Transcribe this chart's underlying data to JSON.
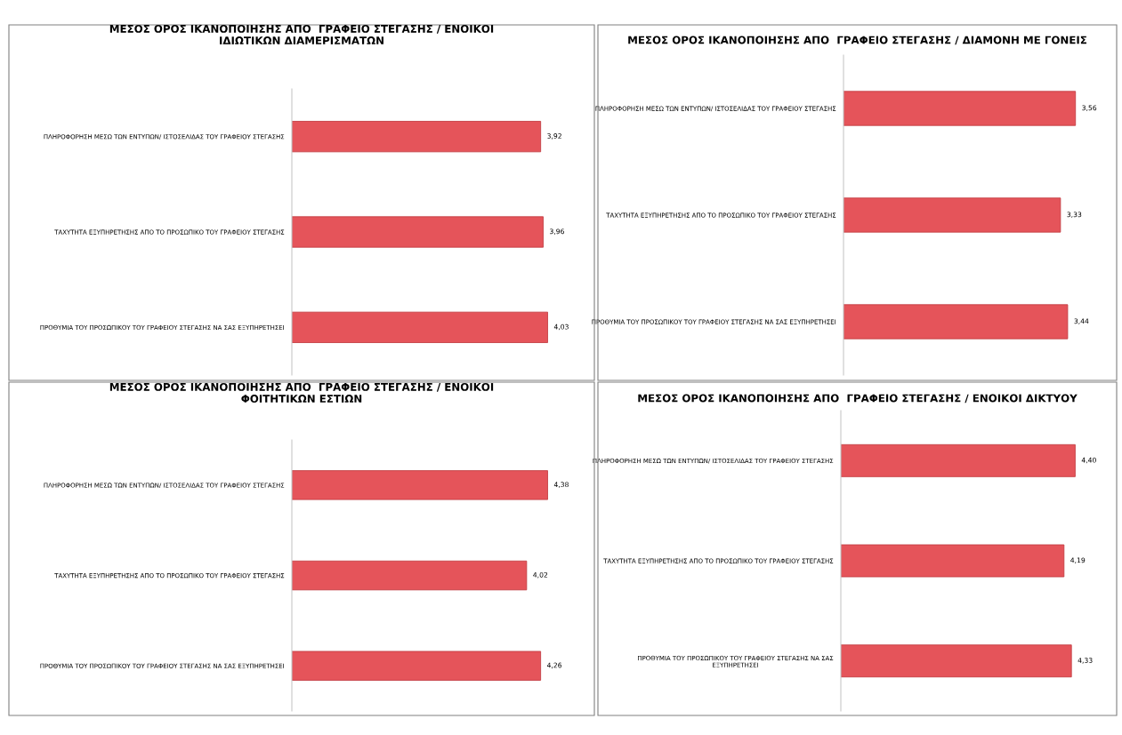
{
  "chart_data": [
    {
      "type": "bar",
      "orientation": "horizontal",
      "title": "ΜΕΣΟΣ ΟΡΟΣ ΙΚΑΝΟΠΟΙΗΣΗΣ ΑΠΟ  ΓΡΑΦΕΙΟ ΣΤΕΓΑΣΗΣ / ΕΝΟΙΚΟΙ\nΙΔΙΩΤΙΚΩΝ ΔΙΑΜΕΡΙΣΜΑΤΩΝ",
      "categories": [
        "ΠΛΗΡΟΦΟΡΗΣΗ ΜΕΣΩ ΤΩΝ ΕΝΤΥΠΩΝ/ ΙΣΤΟΣΕΛΙΔΑΣ ΤΟΥ ΓΡΑΦΕΙΟΥ ΣΤΕΓΑΣΗΣ",
        "ΤΑΧΥΤΗΤΑ ΕΞΥΠΗΡΕΤΗΣΗΣ ΑΠΟ ΤΟ ΠΡΟΣΩΠΙΚΟ ΤΟΥ ΓΡΑΦΕΙΟΥ ΣΤΕΓΑΣΗΣ",
        "ΠΡΟΘΥΜΙΑ ΤΟΥ ΠΡΟΣΩΠΙΚΟΥ ΤΟΥ ΓΡΑΦΕΙΟΥ ΣΤΕΓΑΣΗΣ ΝΑ ΣΑΣ ΕΞΥΠΗΡΕΤΗΣΕΙ"
      ],
      "values": [
        3.92,
        3.96,
        4.03
      ],
      "value_labels": [
        "3,92",
        "3,96",
        "4,03"
      ],
      "color": "#e5545a",
      "tick_labels": "y",
      "grid": false,
      "legend": false
    },
    {
      "type": "bar",
      "orientation": "horizontal",
      "title": "ΜΕΣΟΣ ΟΡΟΣ ΙΚΑΝΟΠΟΙΗΣΗΣ ΑΠΟ  ΓΡΑΦΕΙΟ ΣΤΕΓΑΣΗΣ / ΔΙΑΜΟΝΗ ΜΕ ΓΟΝΕΙΣ",
      "categories": [
        "ΠΛΗΡΟΦΟΡΗΣΗ ΜΕΣΩ ΤΩΝ ΕΝΤΥΠΩΝ/ ΙΣΤΟΣΕΛΙΔΑΣ ΤΟΥ ΓΡΑΦΕΙΟΥ ΣΤΕΓΑΣΗΣ",
        "ΤΑΧΥΤΗΤΑ ΕΞΥΠΗΡΕΤΗΣΗΣ ΑΠΟ ΤΟ ΠΡΟΣΩΠΙΚΟ ΤΟΥ ΓΡΑΦΕΙΟΥ ΣΤΕΓΑΣΗΣ",
        "ΠΡΟΘΥΜΙΑ ΤΟΥ ΠΡΟΣΩΠΙΚΟΥ ΤΟΥ ΓΡΑΦΕΙΟΥ ΣΤΕΓΑΣΗΣ ΝΑ ΣΑΣ ΕΞΥΠΗΡΕΤΗΣΕΙ"
      ],
      "values": [
        3.56,
        3.33,
        3.44
      ],
      "value_labels": [
        "3,56",
        "3,33",
        "3,44"
      ],
      "color": "#e5545a",
      "tick_labels": "y",
      "grid": false,
      "legend": false
    },
    {
      "type": "bar",
      "orientation": "horizontal",
      "title": "ΜΕΣΟΣ ΟΡΟΣ ΙΚΑΝΟΠΟΙΗΣΗΣ ΑΠΟ  ΓΡΑΦΕΙΟ ΣΤΕΓΑΣΗΣ / ΕΝΟΙΚΟΙ\nΦΟΙΤΗΤΙΚΩΝ ΕΣΤΙΩΝ",
      "categories": [
        "ΠΛΗΡΟΦΟΡΗΣΗ ΜΕΣΩ ΤΩΝ ΕΝΤΥΠΩΝ/ ΙΣΤΟΣΕΛΙΔΑΣ ΤΟΥ ΓΡΑΦΕΙΟΥ ΣΤΕΓΑΣΗΣ",
        "ΤΑΧΥΤΗΤΑ ΕΞΥΠΗΡΕΤΗΣΗΣ ΑΠΟ ΤΟ ΠΡΟΣΩΠΙΚΟ ΤΟΥ ΓΡΑΦΕΙΟΥ ΣΤΕΓΑΣΗΣ",
        "ΠΡΟΘΥΜΙΑ ΤΟΥ ΠΡΟΣΩΠΙΚΟΥ ΤΟΥ ΓΡΑΦΕΙΟΥ ΣΤΕΓΑΣΗΣ ΝΑ ΣΑΣ ΕΞΥΠΗΡΕΤΗΣΕΙ"
      ],
      "values": [
        4.38,
        4.02,
        4.26
      ],
      "value_labels": [
        "4,38",
        "4,02",
        "4,26"
      ],
      "color": "#e5545a",
      "tick_labels": "y",
      "grid": false,
      "legend": false
    },
    {
      "type": "bar",
      "orientation": "horizontal",
      "title": "ΜΕΣΟΣ ΟΡΟΣ ΙΚΑΝΟΠΟΙΗΣΗΣ ΑΠΟ  ΓΡΑΦΕΙΟ ΣΤΕΓΑΣΗΣ / ΕΝΟΙΚΟΙ ΔΙΚΤΥΟΥ",
      "categories": [
        "ΠΛΗΡΟΦΟΡΗΣΗ ΜΕΣΩ ΤΩΝ ΕΝΤΥΠΩΝ/ ΙΣΤΟΣΕΛΙΔΑΣ ΤΟΥ ΓΡΑΦΕΙΟΥ ΣΤΕΓΑΣΗΣ",
        "ΤΑΧΥΤΗΤΑ ΕΞΥΠΗΡΕΤΗΣΗΣ ΑΠΟ ΤΟ ΠΡΟΣΩΠΙΚΟ ΤΟΥ ΓΡΑΦΕΙΟΥ ΣΤΕΓΑΣΗΣ",
        "ΠΡΟΘΥΜΙΑ ΤΟΥ ΠΡΟΣΩΠΙΚΟΥ ΤΟΥ ΓΡΑΦΕΙΟΥ ΣΤΕΓΑΣΗΣ ΝΑ ΣΑΣ\nΕΞΥΠΗΡΕΤΗΣΕΙ"
      ],
      "values": [
        4.4,
        4.19,
        4.33
      ],
      "value_labels": [
        "4,40",
        "4,19",
        "4,33"
      ],
      "color": "#e5545a",
      "tick_labels": "y",
      "grid": false,
      "legend": false
    }
  ]
}
